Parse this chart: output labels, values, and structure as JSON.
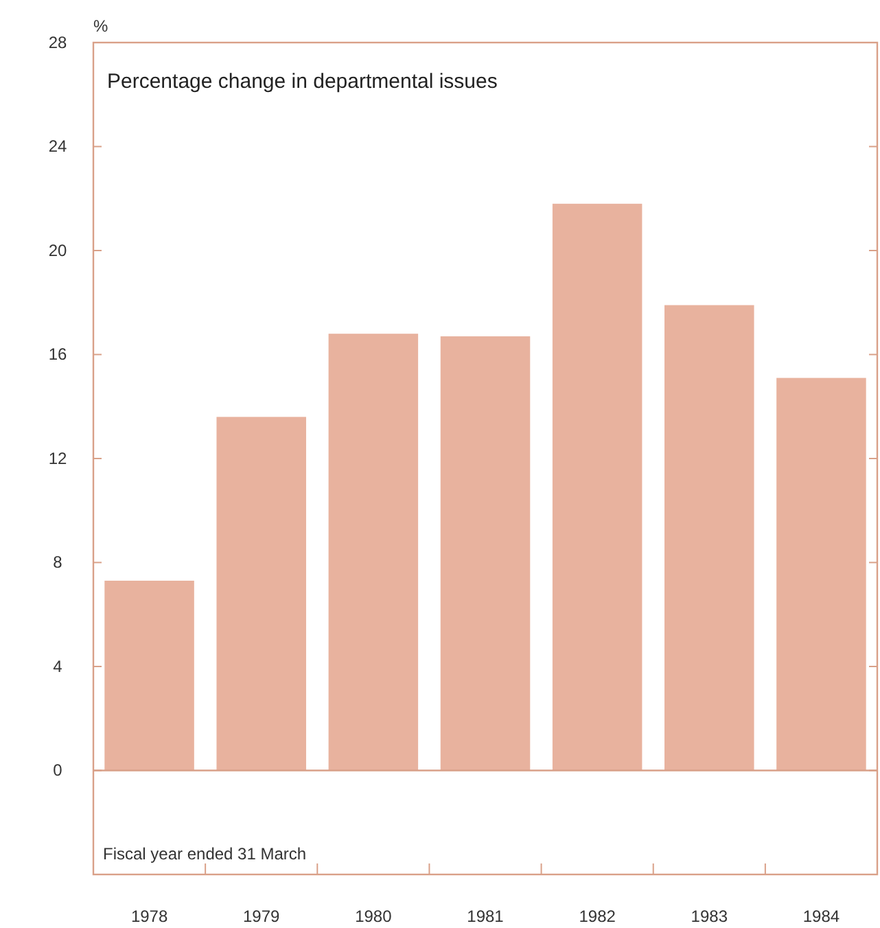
{
  "chart_data": {
    "type": "bar",
    "title": "Percentage change in departmental issues",
    "xlabel": "Fiscal year ended 31 March",
    "ylabel": "%",
    "categories": [
      "1978",
      "1979",
      "1980",
      "1981",
      "1982",
      "1983",
      "1984"
    ],
    "values": [
      7.3,
      13.6,
      16.8,
      16.7,
      21.8,
      17.9,
      15.1
    ],
    "color": "#e8b29e",
    "ylim": [
      -4,
      28
    ],
    "yticks": [
      0,
      4,
      8,
      12,
      16,
      20,
      24,
      28
    ],
    "grid": false,
    "ref_lines": [
      {
        "axis": "y",
        "value": 0
      }
    ]
  }
}
